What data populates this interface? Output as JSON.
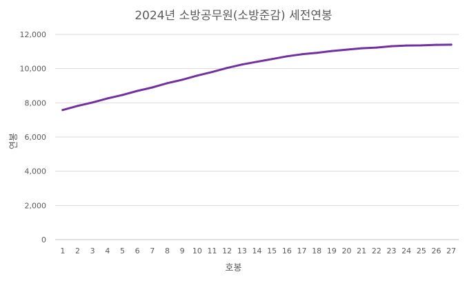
{
  "chart_data": {
    "type": "line",
    "title": "2024년 소방공무원(소방준감) 세전연봉",
    "xlabel": "호봉",
    "ylabel": "연봉",
    "ylim": [
      0,
      12000
    ],
    "yticks": [
      0,
      2000,
      4000,
      6000,
      8000,
      10000,
      12000
    ],
    "ytick_labels": [
      "0",
      "2,000",
      "4,000",
      "6,000",
      "8,000",
      "10,000",
      "12,000"
    ],
    "grid": true,
    "legend": "none",
    "line_color": "#7030a0",
    "categories": [
      "1",
      "2",
      "3",
      "4",
      "5",
      "6",
      "7",
      "8",
      "9",
      "10",
      "11",
      "12",
      "13",
      "14",
      "15",
      "16",
      "17",
      "18",
      "19",
      "20",
      "21",
      "22",
      "23",
      "24",
      "25",
      "26",
      "27"
    ],
    "series": [
      {
        "values": [
          7580,
          7820,
          8020,
          8260,
          8460,
          8700,
          8900,
          9150,
          9350,
          9590,
          9800,
          10040,
          10240,
          10400,
          10560,
          10720,
          10840,
          10920,
          11030,
          11110,
          11190,
          11230,
          11310,
          11350,
          11360,
          11390,
          11400
        ]
      }
    ]
  }
}
